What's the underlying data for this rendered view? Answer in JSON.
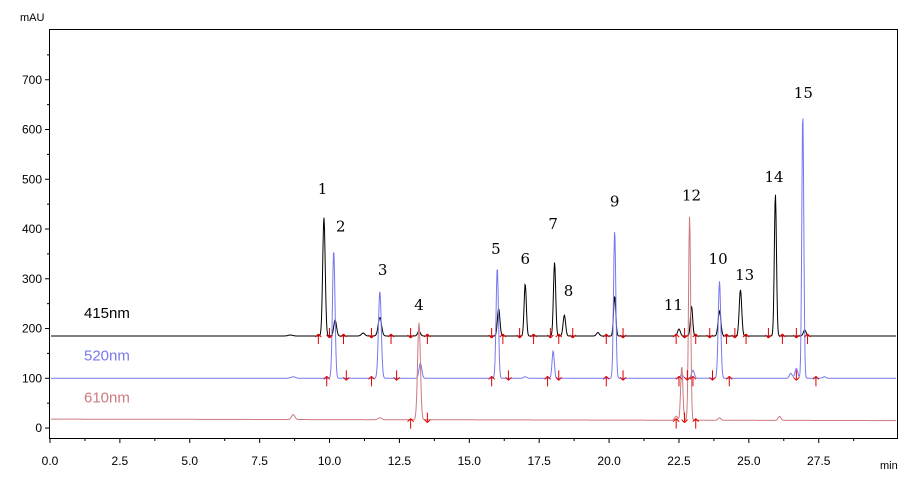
{
  "chart_data": {
    "type": "line",
    "y_unit_label": "mAU",
    "x_unit_label": "min",
    "xlim": [
      0,
      30.3
    ],
    "ylim": [
      -20,
      800
    ],
    "x_ticks": [
      "0.0",
      "2.5",
      "5.0",
      "7.5",
      "10.0",
      "12.5",
      "15.0",
      "17.5",
      "20.0",
      "22.5",
      "25.0",
      "27.5"
    ],
    "x_tick_values": [
      0,
      2.5,
      5,
      7.5,
      10,
      12.5,
      15,
      17.5,
      20,
      22.5,
      25,
      27.5
    ],
    "y_ticks": [
      "0",
      "100",
      "200",
      "300",
      "400",
      "500",
      "600",
      "700"
    ],
    "y_tick_values": [
      0,
      100,
      200,
      300,
      400,
      500,
      600,
      700
    ],
    "series": [
      {
        "name": "415nm",
        "color": "#000000",
        "baseline": 185,
        "peaks": [
          {
            "x": 8.6,
            "h": 2,
            "w": 0.08
          },
          {
            "x": 9.8,
            "h": 238,
            "w": 0.045
          },
          {
            "x": 10.2,
            "h": 32,
            "w": 0.05
          },
          {
            "x": 11.2,
            "h": 6,
            "w": 0.06
          },
          {
            "x": 11.8,
            "h": 37,
            "w": 0.06
          },
          {
            "x": 13.2,
            "h": 10,
            "w": 0.05
          },
          {
            "x": 16.05,
            "h": 55,
            "w": 0.045
          },
          {
            "x": 17.0,
            "h": 105,
            "w": 0.04
          },
          {
            "x": 18.05,
            "h": 148,
            "w": 0.04
          },
          {
            "x": 18.4,
            "h": 42,
            "w": 0.045
          },
          {
            "x": 19.6,
            "h": 7,
            "w": 0.05
          },
          {
            "x": 20.2,
            "h": 80,
            "w": 0.04
          },
          {
            "x": 22.5,
            "h": 14,
            "w": 0.05
          },
          {
            "x": 22.95,
            "h": 60,
            "w": 0.04
          },
          {
            "x": 23.95,
            "h": 50,
            "w": 0.05
          },
          {
            "x": 24.7,
            "h": 93,
            "w": 0.045
          },
          {
            "x": 25.95,
            "h": 285,
            "w": 0.038
          },
          {
            "x": 27.0,
            "h": 12,
            "w": 0.05
          }
        ]
      },
      {
        "name": "520nm",
        "color": "#7878ee",
        "baseline": 100,
        "peaks": [
          {
            "x": 8.7,
            "h": 3,
            "w": 0.08
          },
          {
            "x": 10.15,
            "h": 256,
            "w": 0.045
          },
          {
            "x": 11.8,
            "h": 175,
            "w": 0.05
          },
          {
            "x": 13.25,
            "h": 30,
            "w": 0.05
          },
          {
            "x": 16.0,
            "h": 222,
            "w": 0.042
          },
          {
            "x": 17.0,
            "h": 3,
            "w": 0.06
          },
          {
            "x": 18.0,
            "h": 55,
            "w": 0.04
          },
          {
            "x": 20.2,
            "h": 297,
            "w": 0.04
          },
          {
            "x": 22.6,
            "h": 8,
            "w": 0.05
          },
          {
            "x": 23.0,
            "h": 16,
            "w": 0.05
          },
          {
            "x": 23.95,
            "h": 195,
            "w": 0.045
          },
          {
            "x": 26.5,
            "h": 10,
            "w": 0.05
          },
          {
            "x": 26.7,
            "h": 20,
            "w": 0.05
          },
          {
            "x": 26.93,
            "h": 533,
            "w": 0.036
          },
          {
            "x": 27.7,
            "h": 3,
            "w": 0.06
          }
        ]
      },
      {
        "name": "610nm",
        "color": "#cc7a7e",
        "baseline": 15,
        "peaks": [
          {
            "x": 8.7,
            "h": 10,
            "w": 0.06
          },
          {
            "x": 11.8,
            "h": 4,
            "w": 0.06
          },
          {
            "x": 13.2,
            "h": 195,
            "w": 0.05
          },
          {
            "x": 22.4,
            "h": 8,
            "w": 0.05
          },
          {
            "x": 22.6,
            "h": 108,
            "w": 0.04
          },
          {
            "x": 22.88,
            "h": 410,
            "w": 0.038
          },
          {
            "x": 23.95,
            "h": 5,
            "w": 0.05
          },
          {
            "x": 26.1,
            "h": 8,
            "w": 0.05
          }
        ]
      }
    ],
    "peak_labels": [
      {
        "text": "1",
        "x": 9.75,
        "y": 470
      },
      {
        "text": "2",
        "x": 10.4,
        "y": 395
      },
      {
        "text": "3",
        "x": 11.9,
        "y": 308
      },
      {
        "text": "4",
        "x": 13.2,
        "y": 237
      },
      {
        "text": "5",
        "x": 15.95,
        "y": 350
      },
      {
        "text": "6",
        "x": 17.0,
        "y": 330
      },
      {
        "text": "7",
        "x": 18.0,
        "y": 400
      },
      {
        "text": "8",
        "x": 18.55,
        "y": 265
      },
      {
        "text": "9",
        "x": 20.2,
        "y": 445
      },
      {
        "text": "11",
        "x": 22.3,
        "y": 237
      },
      {
        "text": "12",
        "x": 22.95,
        "y": 457
      },
      {
        "text": "10",
        "x": 23.9,
        "y": 330
      },
      {
        "text": "13",
        "x": 24.85,
        "y": 298
      },
      {
        "text": "14",
        "x": 25.9,
        "y": 495
      },
      {
        "text": "15",
        "x": 26.95,
        "y": 663
      }
    ],
    "integration_markers": {
      "415nm": [
        9.6,
        10.0,
        10.5,
        11.5,
        12.2,
        12.9,
        13.5,
        15.8,
        16.2,
        16.8,
        17.3,
        17.9,
        18.2,
        18.7,
        19.9,
        20.5,
        22.4,
        22.7,
        23.1,
        23.6,
        24.2,
        24.5,
        24.9,
        25.7,
        26.2,
        26.7,
        27.1
      ],
      "520nm": [
        9.9,
        10.6,
        11.5,
        12.4,
        15.8,
        16.4,
        17.8,
        18.2,
        19.9,
        20.5,
        22.5,
        22.8,
        23.0,
        23.7,
        24.3,
        26.7,
        27.4
      ],
      "610nm": [
        12.9,
        13.5,
        22.4,
        22.7,
        23.1
      ]
    }
  }
}
